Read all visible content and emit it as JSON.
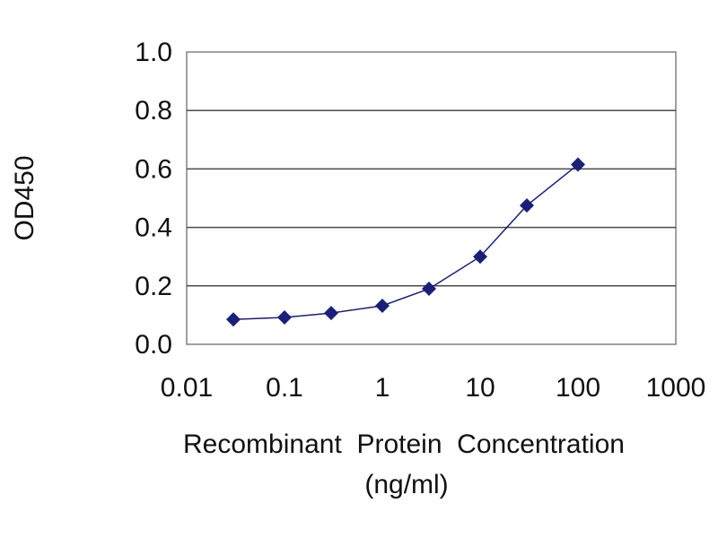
{
  "chart_data": {
    "type": "line",
    "xscale": "log",
    "ylabel": "OD450",
    "xlabel_line1": "Recombinant  Protein  Concentration",
    "xlabel_line2": "(ng/ml)",
    "xlim": [
      0.01,
      1000
    ],
    "ylim": [
      0,
      1
    ],
    "x_ticks": [
      0.01,
      0.1,
      1,
      10,
      100,
      1000
    ],
    "x_tick_labels": [
      "0.01",
      "0.1",
      "1",
      "10",
      "100",
      "1000"
    ],
    "y_ticks": [
      0,
      0.2,
      0.4,
      0.6,
      0.8,
      1.0
    ],
    "y_tick_labels": [
      "0.0",
      "0.2",
      "0.4",
      "0.6",
      "0.8",
      "1.0"
    ],
    "grid": "horizontal",
    "series": [
      {
        "color": "#1a1f7a",
        "marker": "diamond",
        "x": [
          0.03,
          0.1,
          0.3,
          1,
          3,
          10,
          30,
          100
        ],
        "y": [
          0.085,
          0.092,
          0.107,
          0.132,
          0.19,
          0.3,
          0.475,
          0.615
        ]
      }
    ]
  }
}
